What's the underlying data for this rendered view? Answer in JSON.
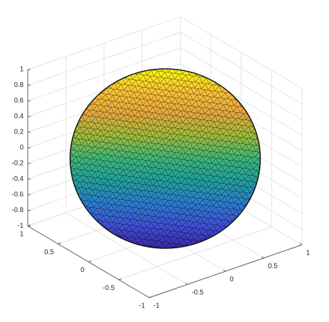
{
  "chart_data": {
    "type": "trisurf",
    "xlim": [
      -1,
      1
    ],
    "ylim": [
      -1,
      1
    ],
    "zlim": [
      -1,
      1
    ],
    "xticks": [
      -1,
      -0.5,
      0,
      0.5,
      1
    ],
    "yticks": [
      -1,
      -0.5,
      0,
      0.5,
      1
    ],
    "zticks": [
      -1,
      -0.8,
      -0.6,
      -0.4,
      -0.2,
      0,
      0.2,
      0.4,
      0.6,
      0.8,
      1
    ],
    "grid": true,
    "colormap": [
      "#f9fb0e",
      "#fbc337",
      "#e8a93e",
      "#9ebe3a",
      "#3db87c",
      "#21a2a0",
      "#2c7ed3",
      "#3f51d8",
      "#3e26a8"
    ]
  }
}
